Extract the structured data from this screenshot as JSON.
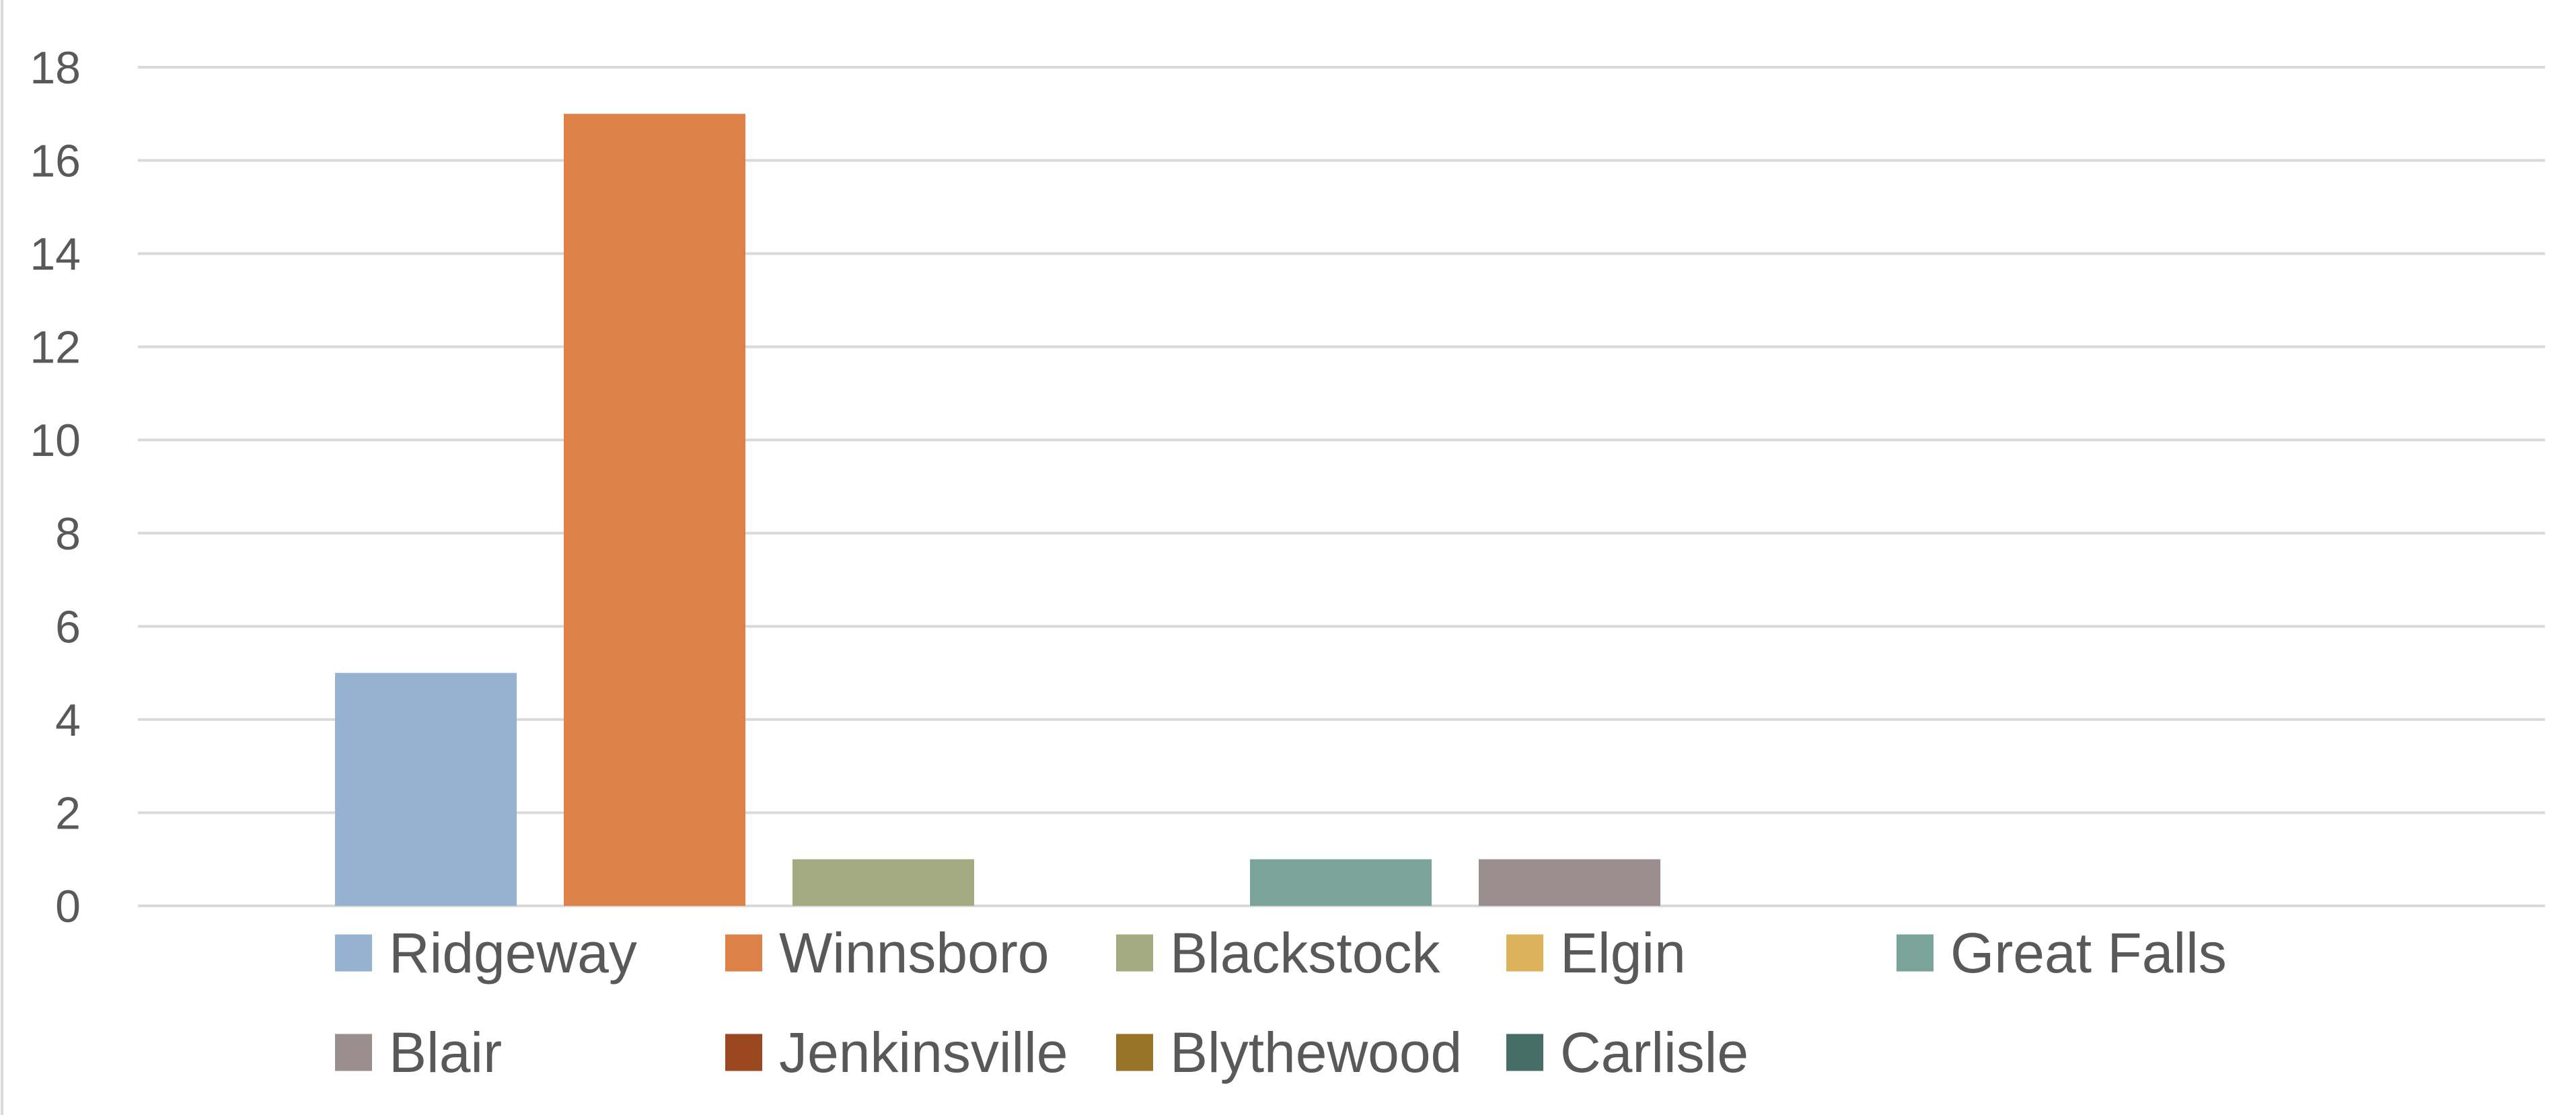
{
  "chart_data": {
    "type": "bar",
    "title": "",
    "xlabel": "",
    "ylabel": "",
    "ylim": [
      0,
      18
    ],
    "yticks": [
      0,
      2,
      4,
      6,
      8,
      10,
      12,
      14,
      16,
      18
    ],
    "grid": true,
    "legend_position": "bottom",
    "series": [
      {
        "name": "Ridgeway",
        "value": 5,
        "color": "#95B3D1"
      },
      {
        "name": "Winnsboro",
        "value": 17,
        "color": "#DE8149"
      },
      {
        "name": "Blackstock",
        "value": 1,
        "color": "#A4AB80"
      },
      {
        "name": "Elgin",
        "value": 0,
        "color": "#DDB25D"
      },
      {
        "name": "Great Falls",
        "value": 1,
        "color": "#7AA39A"
      },
      {
        "name": "Blair",
        "value": 1,
        "color": "#9A8F8E"
      },
      {
        "name": "Jenkinsville",
        "value": 0,
        "color": "#9B4720"
      },
      {
        "name": "Blythewood",
        "value": 0,
        "color": "#987226"
      },
      {
        "name": "Carlisle",
        "value": 0,
        "color": "#466E66"
      }
    ]
  }
}
